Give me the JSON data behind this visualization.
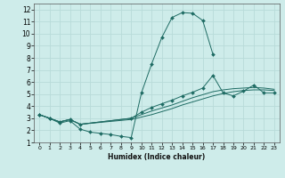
{
  "xlabel": "Humidex (Indice chaleur)",
  "xlim": [
    -0.5,
    23.5
  ],
  "ylim": [
    1,
    12.5
  ],
  "xticks": [
    0,
    1,
    2,
    3,
    4,
    5,
    6,
    7,
    8,
    9,
    10,
    11,
    12,
    13,
    14,
    15,
    16,
    17,
    18,
    19,
    20,
    21,
    22,
    23
  ],
  "yticks": [
    1,
    2,
    3,
    4,
    5,
    6,
    7,
    8,
    9,
    10,
    11,
    12
  ],
  "background_color": "#ceecea",
  "grid_color": "#b8dbd9",
  "line_color": "#1e6b63",
  "lines": [
    {
      "x": [
        0,
        1,
        2,
        3,
        4,
        5,
        6,
        7,
        8,
        9,
        10,
        11,
        12,
        13,
        14,
        15,
        16,
        17
      ],
      "y": [
        3.3,
        3.0,
        2.6,
        2.8,
        2.1,
        1.85,
        1.75,
        1.65,
        1.5,
        1.4,
        5.1,
        7.5,
        9.7,
        11.35,
        11.75,
        11.7,
        11.1,
        8.3
      ],
      "marker": "D",
      "markersize": 2.0
    },
    {
      "x": [
        0,
        1,
        2,
        3,
        4,
        9,
        10,
        11,
        12,
        13,
        14,
        15,
        16,
        17,
        18,
        19,
        20,
        21,
        22,
        23
      ],
      "y": [
        3.3,
        3.0,
        2.7,
        2.9,
        2.5,
        3.0,
        3.5,
        3.9,
        4.2,
        4.5,
        4.85,
        5.15,
        5.5,
        6.55,
        5.1,
        4.85,
        5.25,
        5.75,
        5.1,
        5.1
      ],
      "marker": "D",
      "markersize": 2.0
    },
    {
      "x": [
        0,
        1,
        2,
        3,
        4,
        9,
        10,
        11,
        12,
        13,
        14,
        15,
        16,
        17,
        18,
        19,
        20,
        21,
        22,
        23
      ],
      "y": [
        3.3,
        3.0,
        2.7,
        2.9,
        2.5,
        3.0,
        3.3,
        3.6,
        3.85,
        4.1,
        4.4,
        4.7,
        4.95,
        5.2,
        5.35,
        5.45,
        5.5,
        5.55,
        5.5,
        5.4
      ],
      "marker": null,
      "markersize": 0
    },
    {
      "x": [
        0,
        1,
        2,
        3,
        4,
        9,
        10,
        11,
        12,
        13,
        14,
        15,
        16,
        17,
        18,
        19,
        20,
        21,
        22,
        23
      ],
      "y": [
        3.3,
        3.0,
        2.7,
        2.9,
        2.5,
        2.9,
        3.1,
        3.3,
        3.55,
        3.8,
        4.1,
        4.35,
        4.6,
        4.85,
        5.05,
        5.2,
        5.3,
        5.35,
        5.35,
        5.3
      ],
      "marker": null,
      "markersize": 0
    }
  ]
}
